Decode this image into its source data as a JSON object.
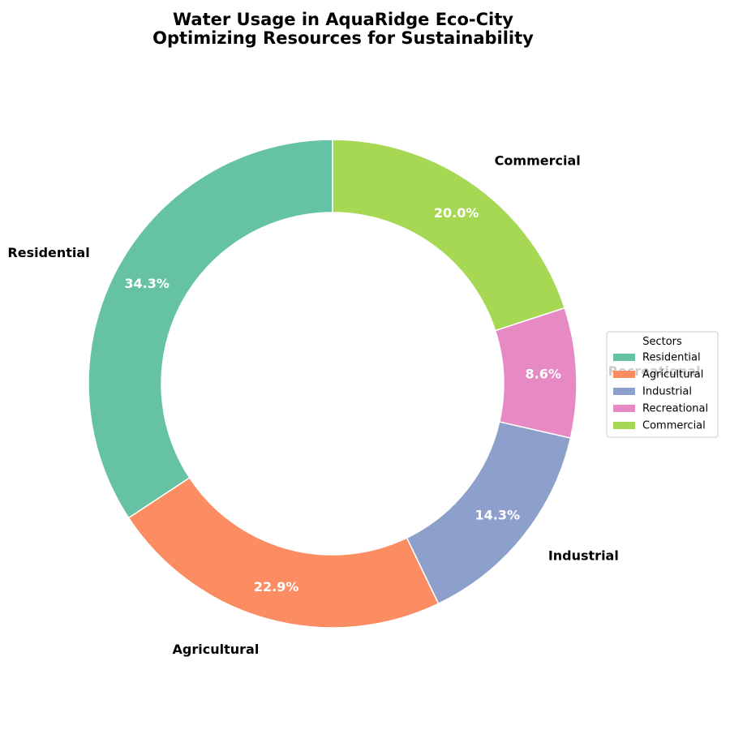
{
  "chart_data": {
    "type": "pie",
    "donut": true,
    "title": "Water Usage in AquaRidge Eco-City\nOptimizing Resources for Sustainability",
    "categories": [
      "Residential",
      "Agricultural",
      "Industrial",
      "Recreational",
      "Commercial"
    ],
    "values": [
      34.3,
      22.9,
      14.3,
      8.6,
      20.0
    ],
    "value_labels": [
      "34.3%",
      "22.9%",
      "14.3%",
      "8.6%",
      "20.0%"
    ],
    "colors": [
      "#66c2a5",
      "#fc8d62",
      "#8da0cb",
      "#e78ac3",
      "#a6d854"
    ],
    "start_angle_deg": 90,
    "direction": "counterclockwise",
    "legend": {
      "title": "Sectors",
      "placement": "center-right",
      "entries": [
        "Residential",
        "Agricultural",
        "Industrial",
        "Recreational",
        "Commercial"
      ]
    }
  }
}
